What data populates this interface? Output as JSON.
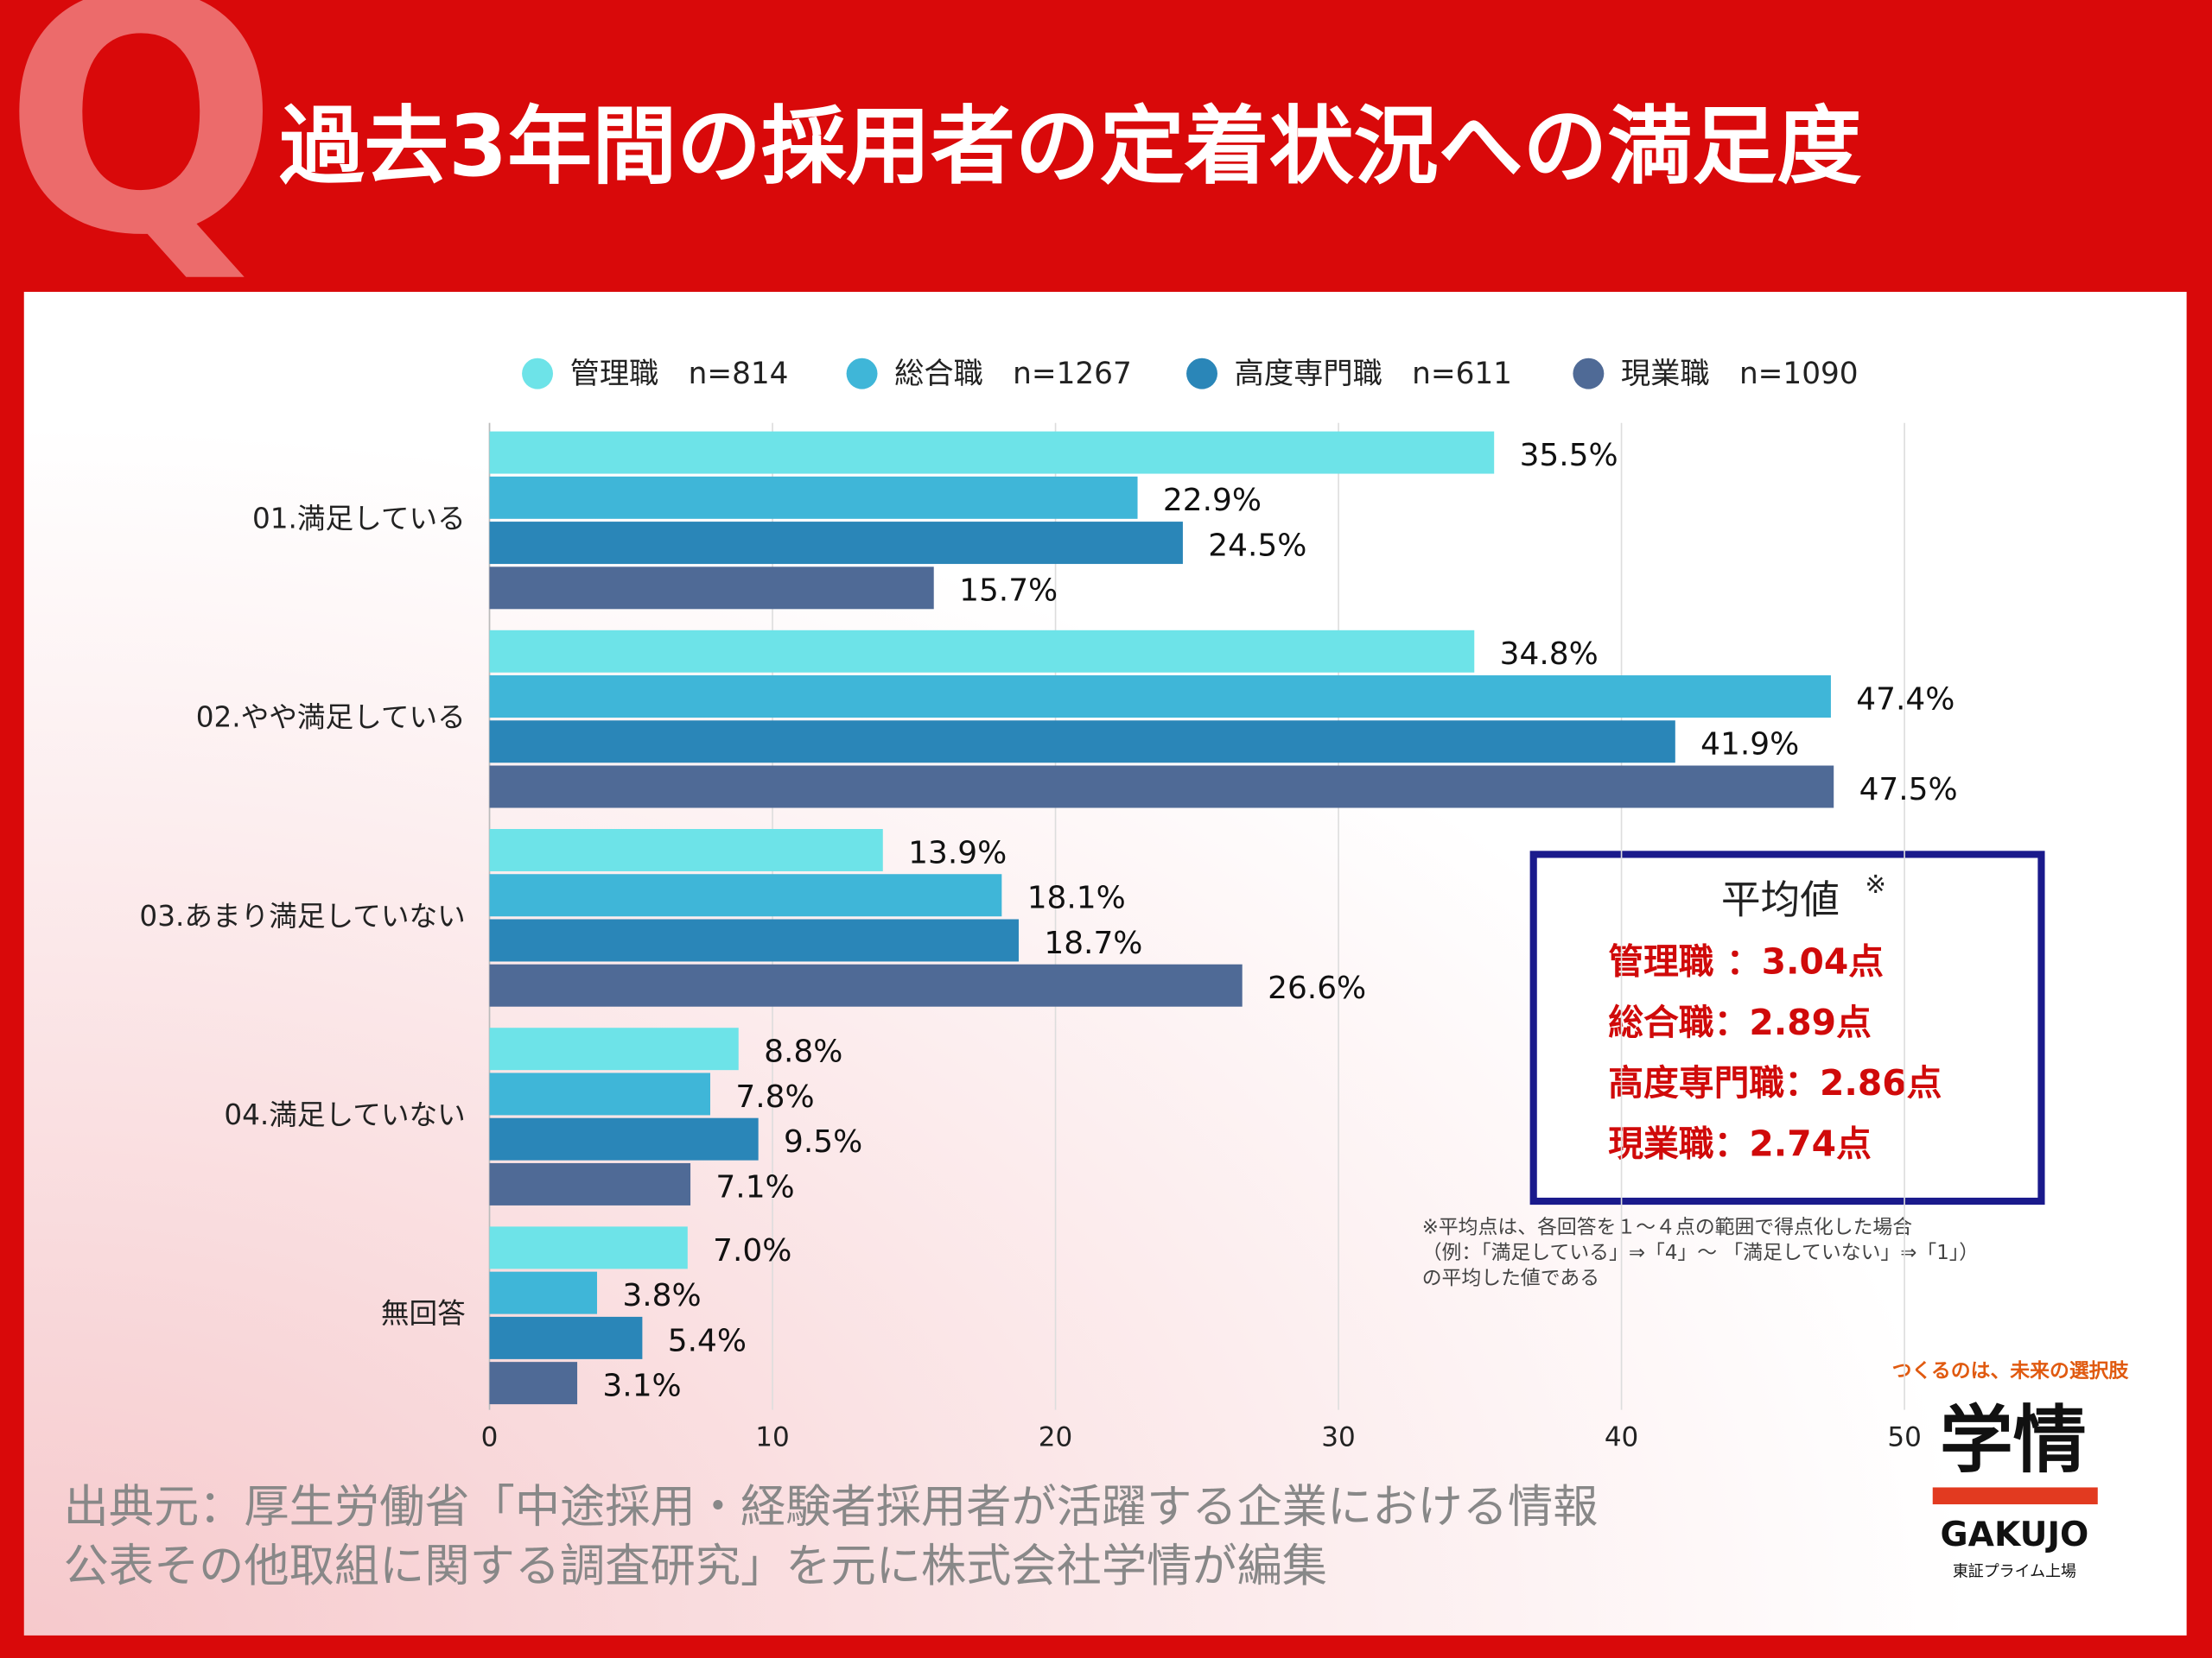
{
  "header": {
    "badge": "Q",
    "title": "過去3年間の採用者の定着状況への満足度"
  },
  "chart_data": {
    "type": "hbar",
    "categories": [
      "01.満足している",
      "02.やや満足している",
      "03.あまり満足していない",
      "04.満足していない",
      "無回答"
    ],
    "series": [
      {
        "name": "管理職　n=814",
        "color": "#6de3e8",
        "values": [
          35.5,
          34.8,
          13.9,
          8.8,
          7.0
        ],
        "value_labels": [
          "35.5%",
          "34.8%",
          "13.9%",
          "8.8%",
          "7.0%"
        ]
      },
      {
        "name": "総合職　n=1267",
        "color": "#3fb6d8",
        "values": [
          22.9,
          47.4,
          18.1,
          7.8,
          3.8
        ],
        "value_labels": [
          "22.9%",
          "47.4%",
          "18.1%",
          "7.8%",
          "3.8%"
        ]
      },
      {
        "name": "高度専門職　n=611",
        "color": "#2a86b8",
        "values": [
          24.5,
          41.9,
          18.7,
          9.5,
          5.4
        ],
        "value_labels": [
          "24.5%",
          "41.9%",
          "18.7%",
          "9.5%",
          "5.4%"
        ]
      },
      {
        "name": "現業職　n=1090",
        "color": "#4f6a96",
        "values": [
          15.7,
          47.5,
          26.6,
          7.1,
          3.1
        ],
        "value_labels": [
          "15.7%",
          "47.5%",
          "26.6%",
          "7.1%",
          "3.1%"
        ]
      }
    ],
    "xlim": [
      0,
      50
    ],
    "xticks": [
      0,
      10,
      20,
      30,
      40,
      50
    ],
    "grid": true,
    "legend": "top"
  },
  "average_box": {
    "title": "平均値",
    "mark": "※",
    "lines": [
      "管理職 ：3.04点",
      "総合職：2.89点",
      "高度専門職：2.86点",
      "現業職：2.74点"
    ]
  },
  "footnote": [
    "※平均点は、各回答を１～４点の範囲で得点化した場合",
    "（例：「満足している」⇒「4」～ 「満足していない」⇒「1」）",
    "の平均した値である"
  ],
  "source": [
    "出典元：厚生労働省「中途採用・経験者採用者が活躍する企業における情報",
    "公表その他取組に関する調査研究」を元に株式会社学情が編集"
  ],
  "logo": {
    "tagline": "つくるのは、未来の選択肢",
    "name": "学情",
    "roman": "GAKUJO",
    "listing": "東証プライム上場"
  }
}
